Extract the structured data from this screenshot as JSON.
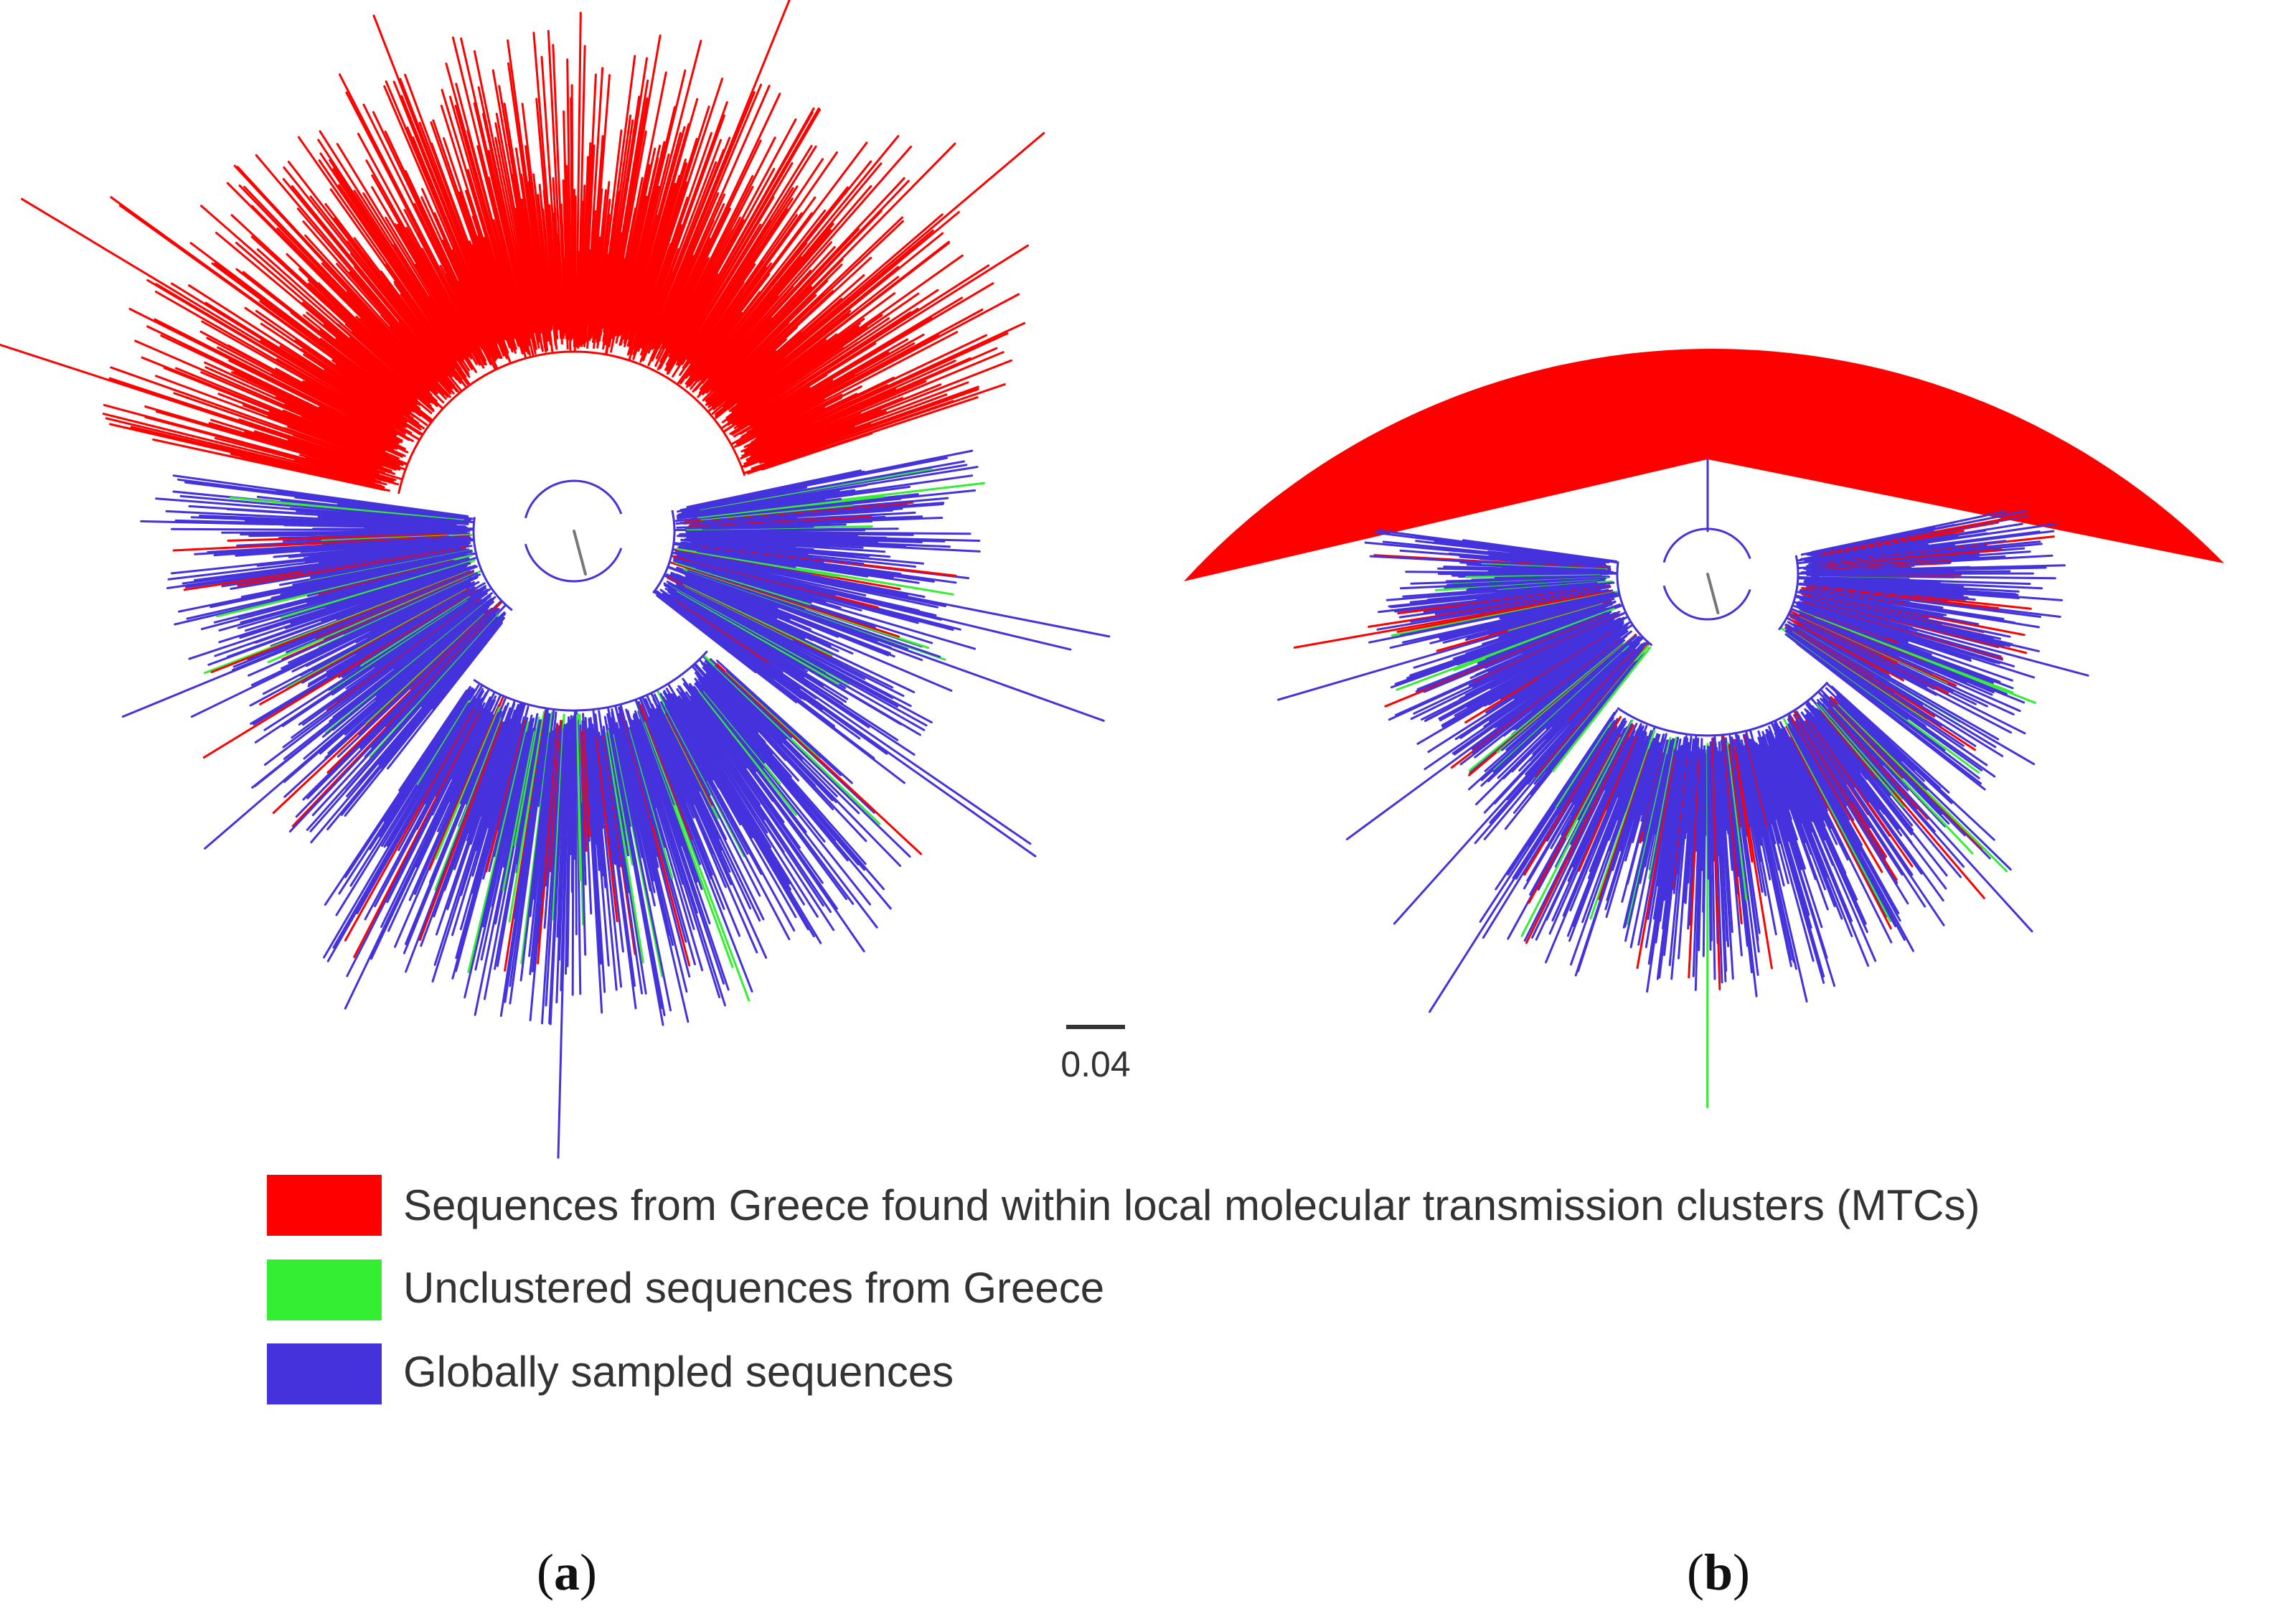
{
  "colors": {
    "mtc": "#ff0000",
    "unclustered": "#33ee33",
    "global": "#4433dd",
    "root": "#777777"
  },
  "scale_bar": {
    "label": "0.04"
  },
  "legend": {
    "items": [
      {
        "label": "Sequences from Greece found within local molecular transmission clusters (MTCs)",
        "color": "#ff0000"
      },
      {
        "label": "Unclustered sequences from Greece",
        "color": "#33ee33"
      },
      {
        "label": "Globally sampled sequences",
        "color": "#4433dd"
      }
    ]
  },
  "panels": [
    {
      "label_prefix": "(",
      "label_letter": "a",
      "label_suffix": ")",
      "view": "full tree",
      "collapsed_mtc_clade": false
    },
    {
      "label_prefix": "(",
      "label_letter": "b",
      "label_suffix": ")",
      "view": "MTC clade collapsed",
      "collapsed_mtc_clade": true
    }
  ]
}
